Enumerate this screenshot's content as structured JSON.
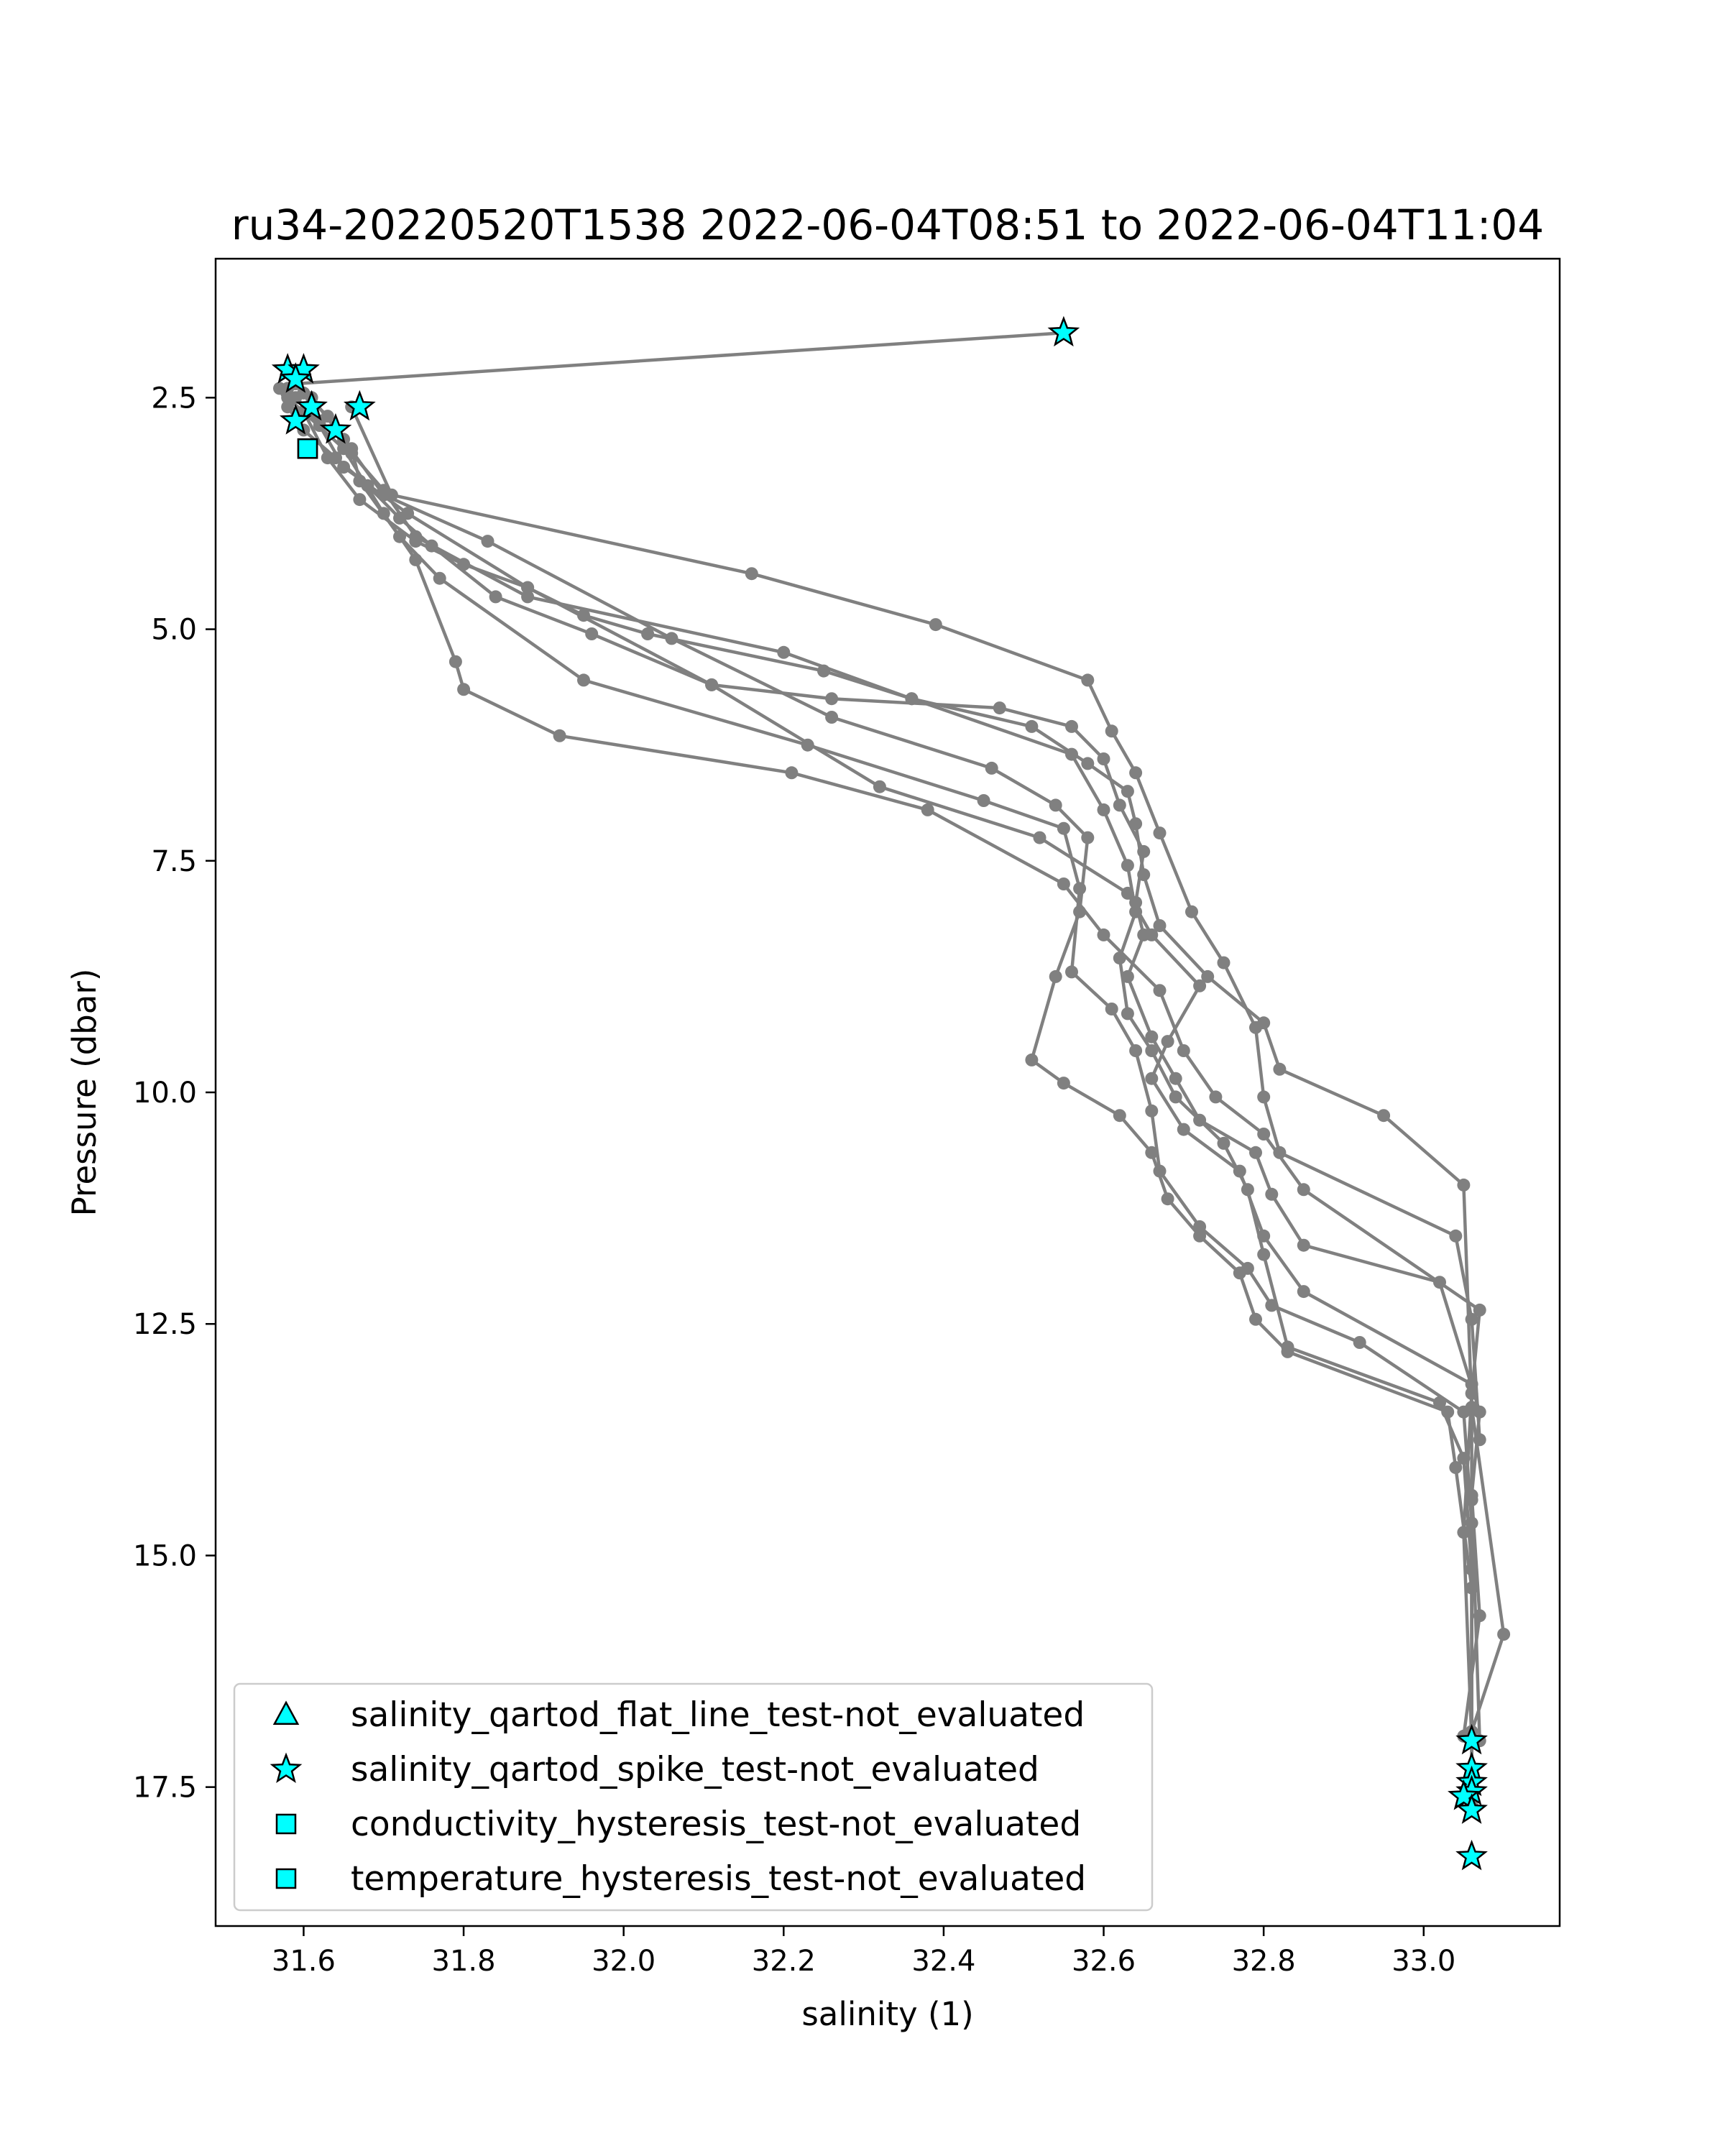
{
  "chart_data": {
    "type": "line",
    "title": "ru34-20220520T1538 2022-06-04T08:51 to 2022-06-04T11:04",
    "xlabel": "salinity (1)",
    "ylabel": "Pressure (dbar)",
    "xlim": [
      31.49,
      33.17
    ],
    "ylim": [
      19.0,
      1.0
    ],
    "y_inverted": true,
    "grid": false,
    "x_ticks": [
      31.6,
      31.8,
      32.0,
      32.2,
      32.4,
      32.6,
      32.8,
      33.0
    ],
    "x_tick_labels": [
      "31.6",
      "31.8",
      "32.0",
      "32.2",
      "32.4",
      "32.6",
      "32.8",
      "33.0"
    ],
    "y_ticks": [
      2.5,
      5.0,
      7.5,
      10.0,
      12.5,
      15.0,
      17.5
    ],
    "y_tick_labels": [
      "2.5",
      "5.0",
      "7.5",
      "10.0",
      "12.5",
      "15.0",
      "17.5"
    ],
    "line_color": "#808080",
    "marker_color": "#00ffff",
    "series": [
      {
        "x": [
          32.55,
          31.59,
          31.57,
          31.58,
          31.6,
          31.64,
          31.68,
          31.72,
          31.76,
          31.84,
          31.96,
          32.11,
          32.26,
          32.47,
          32.56,
          32.6,
          32.62,
          32.65,
          32.64,
          32.65,
          32.63,
          32.66,
          32.69,
          32.72,
          32.79,
          32.81,
          32.85,
          33.02,
          33.07,
          33.06,
          33.07,
          33.05
        ],
        "y": [
          1.8,
          2.35,
          2.4,
          2.6,
          2.85,
          3.15,
          3.45,
          3.8,
          4.1,
          4.65,
          5.05,
          5.6,
          5.75,
          5.85,
          6.05,
          6.4,
          6.9,
          7.4,
          7.95,
          8.3,
          8.75,
          9.4,
          9.85,
          10.3,
          10.65,
          11.1,
          11.65,
          12.05,
          13.45,
          14.35,
          15.65,
          16.95
        ]
      },
      {
        "x": [
          31.6,
          31.63,
          31.66,
          31.7,
          31.74,
          31.88,
          32.2,
          32.36,
          32.56,
          32.6,
          32.63,
          32.64,
          32.62,
          32.63,
          32.66,
          32.69,
          32.75,
          32.78,
          32.8,
          32.83,
          33.02,
          33.05,
          33.06,
          33.06
        ],
        "y": [
          2.45,
          2.7,
          3.1,
          3.5,
          4.0,
          4.65,
          5.25,
          5.75,
          6.35,
          6.95,
          7.55,
          8.05,
          8.55,
          9.15,
          9.55,
          10.05,
          10.55,
          11.05,
          11.75,
          12.75,
          13.35,
          13.95,
          15.15,
          17.3
        ]
      },
      {
        "x": [
          31.61,
          31.65,
          31.7,
          31.83,
          32.06,
          32.26,
          32.46,
          32.54,
          32.58,
          32.57,
          32.54,
          32.51,
          32.55,
          32.62,
          32.66,
          32.68,
          32.72,
          32.77,
          32.79,
          32.83,
          33.03,
          33.04,
          33.06,
          33.06
        ],
        "y": [
          2.5,
          2.95,
          3.55,
          4.05,
          5.1,
          5.95,
          6.5,
          6.9,
          7.25,
          8.05,
          8.75,
          9.65,
          9.9,
          10.25,
          10.65,
          11.15,
          11.55,
          11.95,
          12.45,
          12.8,
          13.45,
          14.05,
          15.35,
          17.55
        ]
      },
      {
        "x": [
          31.59,
          31.62,
          31.66,
          31.67,
          31.72,
          31.77,
          31.95,
          32.23,
          32.45,
          32.55,
          32.57,
          32.56,
          32.61,
          32.64,
          32.66,
          32.67,
          32.72,
          32.78,
          32.81,
          32.92,
          33.05,
          33.06,
          33.06
        ],
        "y": [
          2.5,
          2.75,
          3.05,
          3.4,
          4.0,
          4.45,
          5.55,
          6.25,
          6.85,
          7.15,
          7.8,
          8.7,
          9.1,
          9.55,
          10.2,
          10.85,
          11.45,
          11.9,
          12.3,
          12.7,
          13.45,
          14.65,
          17.7
        ]
      },
      {
        "x": [
          31.58,
          31.62,
          31.65,
          31.73,
          31.88,
          32.11,
          32.32,
          32.52,
          32.63,
          32.66,
          32.72,
          32.68,
          32.66,
          32.7,
          32.77,
          32.8,
          32.85,
          33.06,
          33.06,
          33.07
        ],
        "y": [
          2.4,
          2.8,
          3.25,
          3.75,
          4.55,
          5.6,
          6.7,
          7.25,
          7.85,
          8.3,
          8.85,
          9.45,
          9.85,
          10.4,
          10.85,
          11.55,
          12.15,
          13.15,
          14.4,
          17.0
        ]
      },
      {
        "x": [
          31.66,
          31.71,
          32.16,
          32.39,
          32.58,
          32.61,
          32.64,
          32.67,
          32.71,
          32.75,
          32.79,
          32.8,
          32.82,
          33.04,
          33.06,
          33.07
        ],
        "y": [
          2.6,
          3.55,
          4.4,
          4.95,
          5.55,
          6.1,
          6.55,
          7.2,
          8.05,
          8.6,
          9.3,
          10.05,
          10.65,
          11.55,
          12.45,
          13.75
        ]
      },
      {
        "x": [
          31.58,
          31.65,
          31.7,
          31.74,
          31.79,
          31.8,
          31.92,
          32.21,
          32.38,
          32.55,
          32.6,
          32.67,
          32.7,
          32.74,
          32.8,
          32.85,
          33.07,
          33.06,
          33.05,
          33.06
        ],
        "y": [
          2.5,
          3.05,
          3.75,
          4.25,
          5.35,
          5.65,
          6.15,
          6.55,
          6.95,
          7.75,
          8.3,
          8.9,
          9.55,
          10.05,
          10.45,
          11.05,
          12.35,
          13.25,
          14.75,
          17.0
        ]
      },
      {
        "x": [
          31.6,
          31.63,
          31.67,
          31.74,
          31.8,
          31.88,
          31.95,
          32.03,
          32.25,
          32.36,
          32.51,
          32.58,
          32.63,
          32.64,
          32.65,
          32.67,
          32.73,
          32.8,
          32.82,
          32.95,
          33.05,
          33.06,
          33.1,
          33.06
        ],
        "y": [
          2.65,
          3.15,
          3.6,
          4.05,
          4.3,
          4.55,
          4.85,
          5.05,
          5.45,
          5.75,
          6.05,
          6.45,
          6.75,
          7.1,
          7.65,
          8.2,
          8.75,
          9.25,
          9.75,
          10.25,
          11.0,
          13.4,
          15.85,
          16.9
        ]
      }
    ],
    "legend": {
      "placement": "lower-left",
      "entries": [
        {
          "label": "salinity_qartod_flat_line_test-not_evaluated",
          "marker": "triangle"
        },
        {
          "label": "salinity_qartod_spike_test-not_evaluated",
          "marker": "star"
        },
        {
          "label": "conductivity_hysteresis_test-not_evaluated",
          "marker": "square"
        },
        {
          "label": "temperature_hysteresis_test-not_evaluated",
          "marker": "square"
        }
      ]
    },
    "flagged_points": {
      "salinity_qartod_spike_test-not_evaluated": {
        "x": [
          32.55,
          31.58,
          31.6,
          31.59,
          31.61,
          31.67,
          31.59,
          31.64,
          33.06,
          33.06,
          33.06,
          33.06,
          33.05,
          33.06,
          33.06
        ],
        "y": [
          1.8,
          2.2,
          2.2,
          2.3,
          2.6,
          2.6,
          2.75,
          2.85,
          17.0,
          17.3,
          17.45,
          17.55,
          17.6,
          17.75,
          18.25
        ]
      },
      "conductivity_hysteresis_test-not_evaluated": {
        "x": [
          31.605
        ],
        "y": [
          3.05
        ]
      },
      "temperature_hysteresis_test-not_evaluated": {
        "x": [
          31.605
        ],
        "y": [
          3.05
        ]
      },
      "salinity_qartod_flat_line_test-not_evaluated": {
        "x": [],
        "y": []
      }
    }
  }
}
